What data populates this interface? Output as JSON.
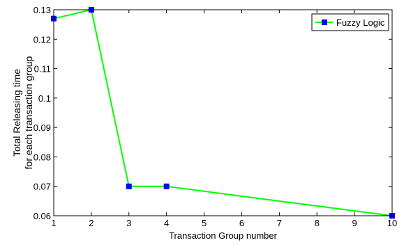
{
  "chart_data": {
    "type": "line",
    "title": "",
    "xlabel": "Transaction Group number",
    "ylabel_lines": [
      "Total Releasing time",
      "for each transaction group"
    ],
    "xlim": [
      1,
      10
    ],
    "ylim": [
      0.06,
      0.13
    ],
    "x_ticks": [
      1,
      2,
      3,
      4,
      5,
      6,
      7,
      8,
      9,
      10
    ],
    "x_tick_labels": [
      "1",
      "2",
      "3",
      "4",
      "5",
      "6",
      "7",
      "8",
      "9",
      "10"
    ],
    "y_ticks": [
      0.06,
      0.07,
      0.08,
      0.09,
      0.1,
      0.11,
      0.12,
      0.13
    ],
    "y_tick_labels": [
      "0.06",
      "0.07",
      "0.08",
      "0.09",
      "0.1",
      "0.11",
      "0.12",
      "0.13"
    ],
    "grid": false,
    "legend_position": "top-right",
    "series": [
      {
        "name": "Fuzzy Logic",
        "line_color": "#00ff00",
        "marker_color": "#0000ff",
        "marker": "square",
        "x": [
          1,
          2,
          3,
          4,
          10
        ],
        "y": [
          0.127,
          0.13,
          0.07,
          0.07,
          0.06
        ]
      }
    ]
  }
}
